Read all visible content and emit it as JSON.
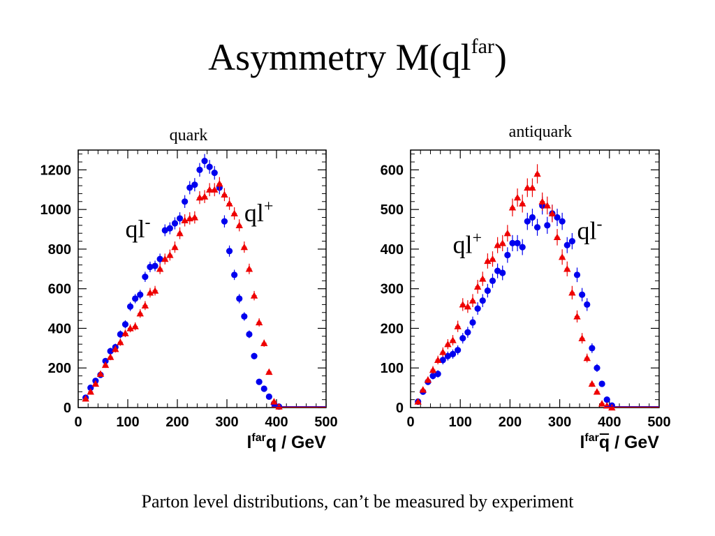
{
  "slide": {
    "title_main": "Asymmetry M(ql",
    "title_sup": "far",
    "title_close": ")",
    "caption": "Parton level distributions, can’t be measured by experiment"
  },
  "colors": {
    "blue_series": "#0000ee",
    "red_series": "#ee0000",
    "frame": "#000000"
  },
  "chart_data": [
    {
      "type": "scatter",
      "panel_label": "quark",
      "xlabel_main": "l",
      "xlabel_sup": "far",
      "xlabel_var": "q",
      "xlabel_bar": false,
      "xlabel_unit": " / GeV",
      "xlim": [
        0,
        500
      ],
      "ylim": [
        0,
        1300
      ],
      "xticks": [
        0,
        100,
        200,
        300,
        400,
        500
      ],
      "yticks": [
        0,
        200,
        400,
        600,
        800,
        1000,
        1200
      ],
      "annotations": [
        {
          "text": "ql",
          "sup": "-",
          "x": 95,
          "y": 860,
          "color": "#000000"
        },
        {
          "text": "ql",
          "sup": "+",
          "x": 335,
          "y": 940,
          "color": "#000000"
        }
      ],
      "series": [
        {
          "label": "ql-",
          "color": "#0000ee",
          "marker": "circle",
          "x": [
            15,
            25,
            35,
            45,
            55,
            65,
            75,
            85,
            95,
            105,
            115,
            125,
            135,
            145,
            155,
            165,
            175,
            185,
            195,
            205,
            215,
            225,
            235,
            245,
            255,
            265,
            275,
            285,
            295,
            305,
            315,
            325,
            335,
            345,
            355,
            365,
            375,
            385,
            395,
            405
          ],
          "y": [
            50,
            100,
            135,
            165,
            235,
            285,
            305,
            370,
            420,
            510,
            550,
            570,
            660,
            710,
            715,
            750,
            895,
            905,
            930,
            955,
            1040,
            1110,
            1125,
            1200,
            1245,
            1215,
            1185,
            1110,
            940,
            790,
            670,
            550,
            460,
            370,
            260,
            130,
            95,
            55,
            20,
            5
          ]
        },
        {
          "label": "ql+",
          "color": "#ee0000",
          "marker": "triangle",
          "x": [
            15,
            25,
            35,
            45,
            55,
            65,
            75,
            85,
            95,
            105,
            115,
            125,
            135,
            145,
            155,
            165,
            175,
            185,
            195,
            205,
            215,
            225,
            235,
            245,
            255,
            265,
            275,
            285,
            295,
            305,
            315,
            325,
            335,
            345,
            355,
            365,
            375,
            385,
            395,
            405
          ],
          "y": [
            45,
            80,
            120,
            170,
            215,
            255,
            295,
            330,
            375,
            400,
            410,
            475,
            515,
            580,
            590,
            700,
            750,
            770,
            810,
            880,
            945,
            955,
            960,
            1060,
            1065,
            1100,
            1100,
            1130,
            1075,
            1030,
            980,
            920,
            810,
            700,
            565,
            430,
            325,
            180,
            30,
            5
          ]
        }
      ]
    },
    {
      "type": "scatter",
      "panel_label": "antiquark",
      "xlabel_main": "l",
      "xlabel_sup": "far",
      "xlabel_var": "q",
      "xlabel_bar": true,
      "xlabel_unit": " / GeV",
      "xlim": [
        0,
        500
      ],
      "ylim": [
        0,
        650
      ],
      "xticks": [
        0,
        100,
        200,
        300,
        400,
        500
      ],
      "yticks": [
        0,
        100,
        200,
        300,
        400,
        500,
        600
      ],
      "annotations": [
        {
          "text": "ql",
          "sup": "+",
          "x": 85,
          "y": 390,
          "color": "#000000"
        },
        {
          "text": "ql",
          "sup": "-",
          "x": 335,
          "y": 425,
          "color": "#000000"
        }
      ],
      "series": [
        {
          "label": "ql-",
          "color": "#0000ee",
          "marker": "circle",
          "x": [
            15,
            25,
            35,
            45,
            55,
            65,
            75,
            85,
            95,
            105,
            115,
            125,
            135,
            145,
            155,
            165,
            175,
            185,
            195,
            205,
            215,
            225,
            235,
            245,
            255,
            265,
            275,
            285,
            295,
            305,
            315,
            325,
            335,
            345,
            355,
            365,
            375,
            385,
            395,
            405
          ],
          "y": [
            15,
            40,
            65,
            80,
            85,
            120,
            130,
            135,
            145,
            175,
            190,
            215,
            250,
            270,
            295,
            320,
            345,
            340,
            385,
            415,
            415,
            405,
            470,
            480,
            455,
            510,
            460,
            490,
            480,
            470,
            410,
            420,
            335,
            285,
            260,
            150,
            100,
            60,
            20,
            5
          ]
        },
        {
          "label": "ql+",
          "color": "#ee0000",
          "marker": "triangle",
          "x": [
            15,
            25,
            35,
            45,
            55,
            65,
            75,
            85,
            95,
            105,
            115,
            125,
            135,
            145,
            155,
            165,
            175,
            185,
            195,
            205,
            215,
            225,
            235,
            245,
            255,
            265,
            275,
            285,
            295,
            305,
            315,
            325,
            335,
            345,
            355,
            365,
            375,
            385,
            395,
            405
          ],
          "y": [
            15,
            45,
            70,
            95,
            120,
            140,
            160,
            170,
            205,
            260,
            255,
            270,
            305,
            325,
            370,
            375,
            410,
            415,
            440,
            505,
            530,
            515,
            555,
            555,
            590,
            520,
            510,
            490,
            430,
            380,
            350,
            290,
            230,
            175,
            125,
            60,
            40,
            10,
            5,
            0
          ]
        }
      ]
    }
  ]
}
